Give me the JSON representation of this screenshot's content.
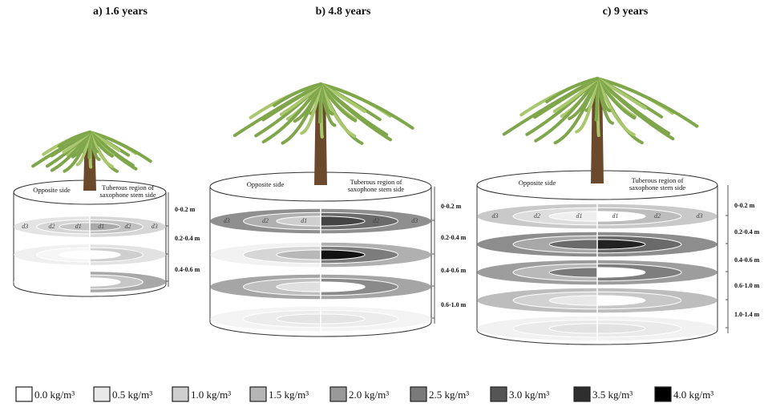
{
  "panels": [
    {
      "title": "a) 1.6 years",
      "opposite_label": "Opposite side",
      "stem_label": [
        "Tuberous region of",
        "saxophone stem side"
      ],
      "ring_labels": [
        "d3",
        "d2",
        "d1",
        "d1",
        "d2",
        "d3"
      ],
      "depth_labels": [
        "0-0.2 m",
        "0.2-0.4 m",
        "0.4-0.6 m"
      ]
    },
    {
      "title": "b) 4.8 years",
      "opposite_label": "Opposite side",
      "stem_label": [
        "Tuberous region of",
        "saxophone stem side"
      ],
      "ring_labels": [
        "d3",
        "d2",
        "d1",
        "d1",
        "d2",
        "d3"
      ],
      "depth_labels": [
        "0-0.2 m",
        "0.2-0.4 m",
        "0.4-0.6 m",
        "0.6-1.0 m"
      ]
    },
    {
      "title": "c) 9 years",
      "opposite_label": "Opposite side",
      "stem_label": [
        "Tuberous region of",
        "saxophone stem side"
      ],
      "ring_labels": [
        "d3",
        "d2",
        "d1",
        "d1",
        "d2",
        "d3"
      ],
      "depth_labels": [
        "0-0.2 m",
        "0.2-0.4 m",
        "0.4-0.6 m",
        "0.6-1.0 m",
        "1.0-1.4 m"
      ]
    }
  ],
  "legend": [
    {
      "label": "0.0 kg/m³",
      "color": "#ffffff"
    },
    {
      "label": "0.5 kg/m³",
      "color": "#e8e8e8"
    },
    {
      "label": "1.0 kg/m³",
      "color": "#cfcfcf"
    },
    {
      "label": "1.5 kg/m³",
      "color": "#b5b5b5"
    },
    {
      "label": "2.0 kg/m³",
      "color": "#999999"
    },
    {
      "label": "2.5 kg/m³",
      "color": "#7a7a7a"
    },
    {
      "label": "3.0 kg/m³",
      "color": "#555555"
    },
    {
      "label": "3.5 kg/m³",
      "color": "#2e2e2e"
    },
    {
      "label": "4.0 kg/m³",
      "color": "#000000"
    }
  ]
}
